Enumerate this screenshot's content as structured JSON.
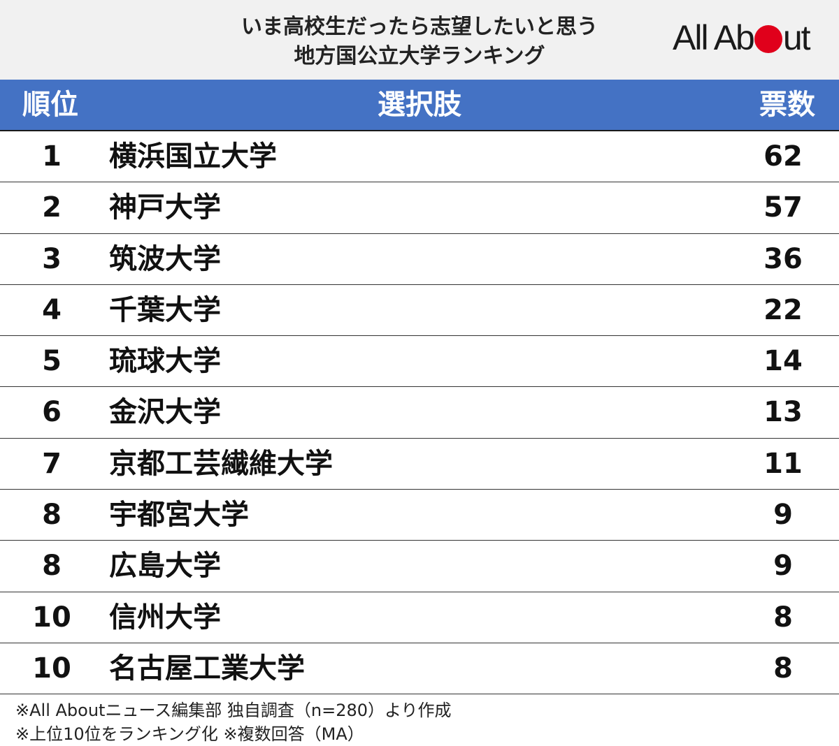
{
  "title": {
    "line1": "いま高校生だったら志望したいと思う",
    "line2": "地方国公立大学ランキング"
  },
  "logo": {
    "text_before": "All Ab",
    "text_after": "ut",
    "accent_color": "#e0001b"
  },
  "header": {
    "rank": "順位",
    "choice": "選択肢",
    "votes": "票数",
    "background_color": "#4472c4"
  },
  "rows": [
    {
      "rank": "1",
      "name": "横浜国立大学",
      "votes": "62"
    },
    {
      "rank": "2",
      "name": "神戸大学",
      "votes": "57"
    },
    {
      "rank": "3",
      "name": "筑波大学",
      "votes": "36"
    },
    {
      "rank": "4",
      "name": "千葉大学",
      "votes": "22"
    },
    {
      "rank": "5",
      "name": "琉球大学",
      "votes": "14"
    },
    {
      "rank": "6",
      "name": "金沢大学",
      "votes": "13"
    },
    {
      "rank": "7",
      "name": "京都工芸繊維大学",
      "votes": "11"
    },
    {
      "rank": "8",
      "name": "宇都宮大学",
      "votes": "9"
    },
    {
      "rank": "8",
      "name": "広島大学",
      "votes": "9"
    },
    {
      "rank": "10",
      "name": "信州大学",
      "votes": "8"
    },
    {
      "rank": "10",
      "name": "名古屋工業大学",
      "votes": "8"
    }
  ],
  "notes": {
    "line1": "※All Aboutニュース編集部 独自調査（n=280）より作成",
    "line2": "※上位10位をランキング化 ※複数回答（MA）"
  }
}
